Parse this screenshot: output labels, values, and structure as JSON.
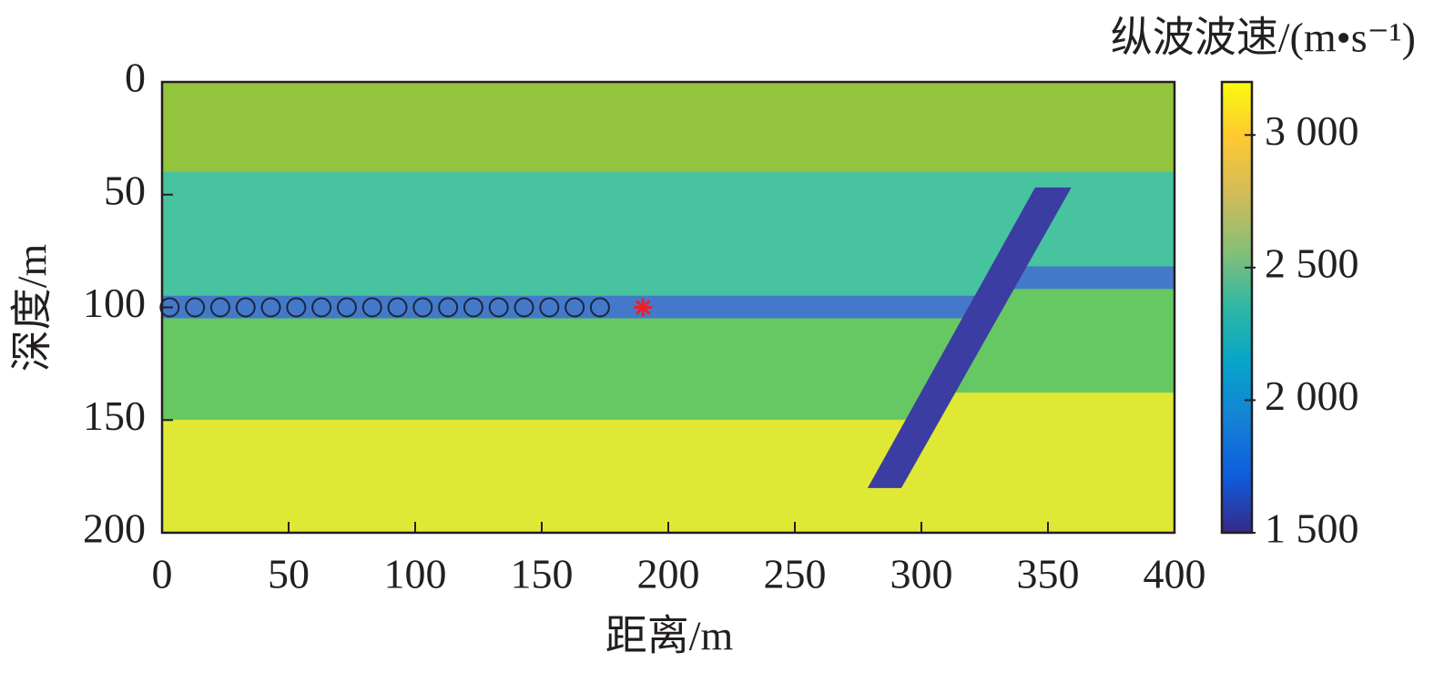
{
  "chart_data": {
    "type": "velocity-model",
    "xlabel": "距离/m",
    "ylabel": "深度/m",
    "xlim": [
      0,
      400
    ],
    "ylim": [
      200,
      0
    ],
    "xticks": [
      0,
      50,
      100,
      150,
      200,
      250,
      300,
      350,
      400
    ],
    "yticks": [
      0,
      50,
      100,
      150,
      200
    ],
    "regions": [
      {
        "value": 2700,
        "color": "#92c43e",
        "polygon": [
          [
            0,
            0
          ],
          [
            400,
            0
          ],
          [
            400,
            40
          ],
          [
            0,
            40
          ]
        ]
      },
      {
        "value": 2400,
        "color": "#48c3a0",
        "polygon": [
          [
            0,
            40
          ],
          [
            355.5,
            40
          ],
          [
            328,
            95
          ],
          [
            0,
            95
          ]
        ]
      },
      {
        "value": 1900,
        "color": "#4479c9",
        "polygon": [
          [
            0,
            95
          ],
          [
            328,
            95
          ],
          [
            323,
            105
          ],
          [
            0,
            105
          ]
        ]
      },
      {
        "value": 2600,
        "color": "#65c862",
        "polygon": [
          [
            0,
            105
          ],
          [
            323,
            105
          ],
          [
            300.5,
            150
          ],
          [
            0,
            150
          ]
        ]
      },
      {
        "value": 3200,
        "color": "#dfe834",
        "polygon": [
          [
            0,
            150
          ],
          [
            300.5,
            150
          ],
          [
            275.5,
            200
          ],
          [
            0,
            200
          ]
        ]
      },
      {
        "value": 2400,
        "color": "#48c3a0",
        "polygon": [
          [
            355.5,
            40
          ],
          [
            400,
            40
          ],
          [
            400,
            82
          ],
          [
            334.5,
            82
          ]
        ]
      },
      {
        "value": 1900,
        "color": "#4479c9",
        "polygon": [
          [
            334.5,
            82
          ],
          [
            400,
            82
          ],
          [
            400,
            92
          ],
          [
            329.5,
            92
          ]
        ]
      },
      {
        "value": 2600,
        "color": "#65c862",
        "polygon": [
          [
            329.5,
            92
          ],
          [
            400,
            92
          ],
          [
            400,
            138
          ],
          [
            306.5,
            138
          ]
        ]
      },
      {
        "value": 3200,
        "color": "#dfe834",
        "polygon": [
          [
            306.5,
            138
          ],
          [
            400,
            138
          ],
          [
            400,
            200
          ],
          [
            275.5,
            200
          ]
        ]
      },
      {
        "value": 1500,
        "color": "#3b3da2",
        "polygon": [
          [
            345,
            47
          ],
          [
            359,
            47
          ],
          [
            292,
            180
          ],
          [
            279,
            180
          ]
        ]
      }
    ],
    "receivers": {
      "color": "#1c2540",
      "x": [
        3,
        13,
        23,
        33,
        43,
        53,
        63,
        73,
        83,
        93,
        103,
        113,
        123,
        133,
        143,
        153,
        163,
        173
      ],
      "y": [
        100,
        100,
        100,
        100,
        100,
        100,
        100,
        100,
        100,
        100,
        100,
        100,
        100,
        100,
        100,
        100,
        100,
        100
      ]
    },
    "source": {
      "color": "#e8202a",
      "x": 190,
      "y": 100
    },
    "colorbar": {
      "label": "纵波波速/(m•s⁻¹)",
      "clim": [
        1500,
        3200
      ],
      "ticks": [
        {
          "value": 1500,
          "label": "1 500"
        },
        {
          "value": 2000,
          "label": "2 000"
        },
        {
          "value": 2500,
          "label": "2 500"
        },
        {
          "value": 3000,
          "label": "3 000"
        }
      ],
      "colormap": [
        "#352a87",
        "#0f5cdd",
        "#1481d6",
        "#06a4ca",
        "#2eb7a4",
        "#87bf77",
        "#d1bb59",
        "#fec832",
        "#f9fb0e"
      ]
    }
  }
}
